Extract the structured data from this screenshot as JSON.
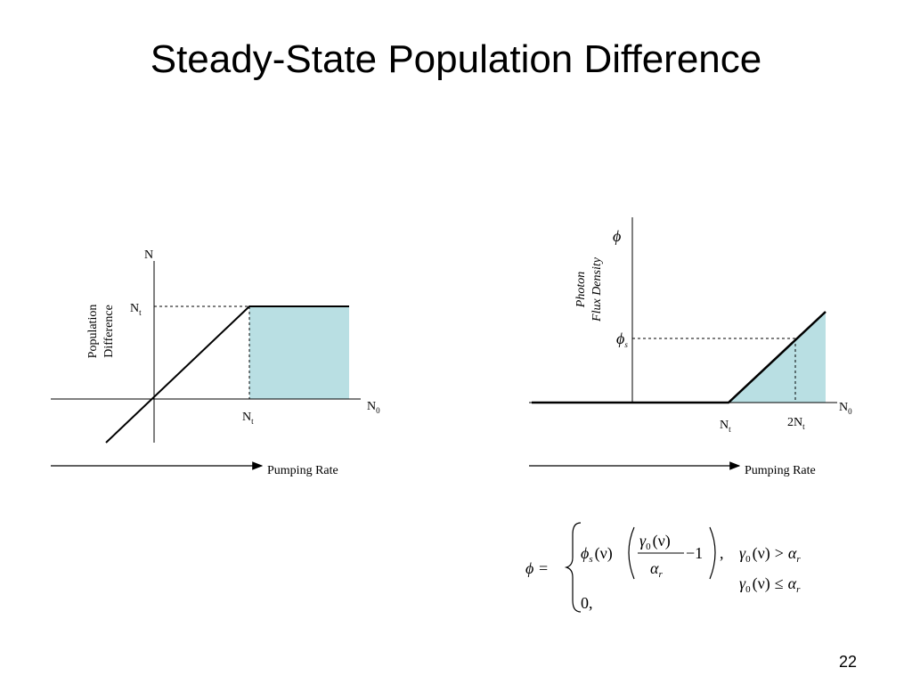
{
  "slide": {
    "title": "Steady-State Population Difference",
    "page_number": "22"
  },
  "left_graph": {
    "y_axis_label": "N",
    "y_title_line1": "Population",
    "y_title_line2": "Difference",
    "y_tick_main": "N",
    "y_tick_sub": "t",
    "x_tick_main": "N",
    "x_tick_sub": "t",
    "x_axis_main": "N",
    "x_axis_sub": "0",
    "arrow_label": "Pumping Rate",
    "fill_color": "#b9dfe3"
  },
  "right_graph": {
    "y_axis_label": "ϕ",
    "y_title_line1": "Photon",
    "y_title_line2": "Flux Density",
    "y_tick_main": "ϕ",
    "y_tick_sub": "s",
    "x_tick1_main": "N",
    "x_tick1_sub": "t",
    "x_tick2_main": "2N",
    "x_tick2_sub": "t",
    "x_axis_main": "N",
    "x_axis_sub": "0",
    "arrow_label": "Pumping Rate",
    "fill_color": "#b9dfe3"
  },
  "equation": {
    "lhs": "ϕ =",
    "phi": "ϕ",
    "phi_sub": "s",
    "nu_paren": "(ν)",
    "gamma": "γ",
    "gamma_sub": "0",
    "alpha": "α",
    "alpha_sub": "r",
    "minus_one": "−1",
    "comma": ",",
    "cond1_rel": ">",
    "cond2_rel": "≤",
    "zero_case": "0,"
  }
}
